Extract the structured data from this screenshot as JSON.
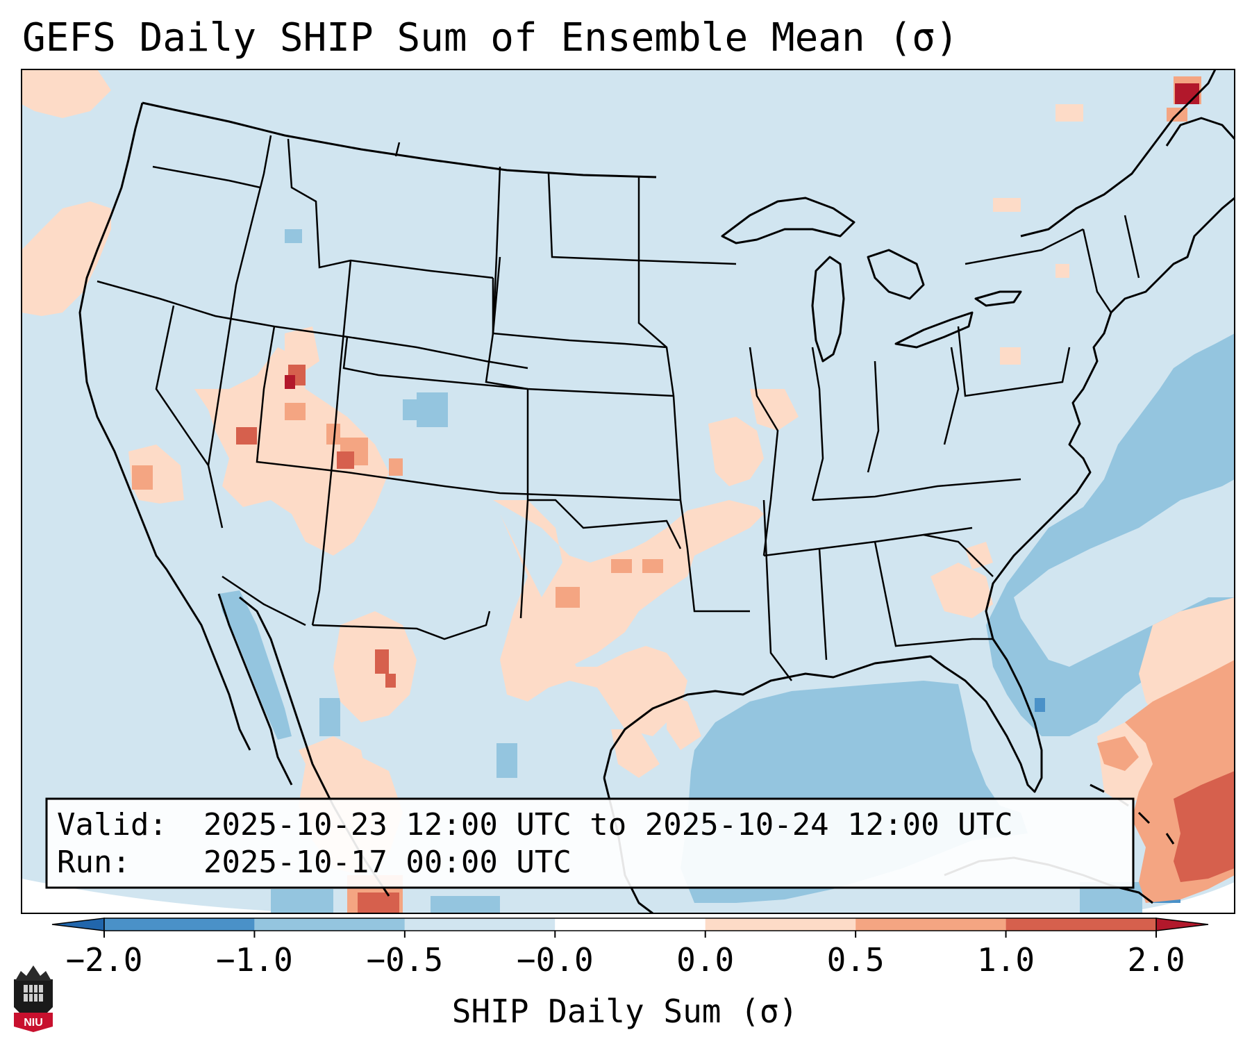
{
  "title": "GEFS Daily SHIP Sum of Ensemble Mean (σ)",
  "info_box": {
    "valid_label": "Valid:",
    "valid_value": "2025-10-23 12:00 UTC to 2025-10-24 12:00 UTC",
    "run_label": "Run:",
    "run_value": "2025-10-17 00:00 UTC"
  },
  "colorbar": {
    "label": "SHIP Daily Sum (σ)",
    "ticks": [
      "−2.0",
      "−1.0",
      "−0.5",
      "−0.0",
      "0.0",
      "0.5",
      "1.0",
      "2.0"
    ],
    "bins": [
      {
        "from": "-2.0",
        "to": "-1.0",
        "color": "#4a91c8"
      },
      {
        "from": "-1.0",
        "to": "-0.5",
        "color": "#94c5df"
      },
      {
        "from": "-0.5",
        "to": "-0.0",
        "color": "#d1e5f0"
      },
      {
        "from": "-0.0",
        "to": "0.0",
        "color": "#ffffff"
      },
      {
        "from": "0.0",
        "to": "0.5",
        "color": "#fddbc7"
      },
      {
        "from": "0.5",
        "to": "1.0",
        "color": "#f4a582"
      },
      {
        "from": "1.0",
        "to": "2.0",
        "color": "#d6604d"
      }
    ],
    "extend_min_color": "#2166ac",
    "extend_max_color": "#b2182b"
  },
  "logo": {
    "text": "NIU",
    "color": "#c8102e"
  },
  "map": {
    "background_color": "#d1e5f0",
    "anomaly_regions": [
      {
        "region": "Pacific Northwest offshore",
        "category": "0.0 to 0.5"
      },
      {
        "region": "Northern California / Nevada",
        "category": "0.0 to 0.5"
      },
      {
        "region": "Utah",
        "category": "1.0 to 2.0"
      },
      {
        "region": "Four Corners / Arizona / New Mexico",
        "category": "0.0 to 0.5"
      },
      {
        "region": "Texas / Oklahoma / Arkansas",
        "category": "0.0 to 0.5"
      },
      {
        "region": "Southeast US / Carolinas",
        "category": "0.0 to 0.5"
      },
      {
        "region": "Gulf of Mexico",
        "category": "-1.0 to -0.5"
      },
      {
        "region": "Western Atlantic",
        "category": "-1.0 to -0.5"
      },
      {
        "region": "Southwestern Atlantic / Caribbean",
        "category": "0.5 to 1.0"
      },
      {
        "region": "Gulf of California",
        "category": "-1.0 to -0.5"
      },
      {
        "region": "Gaspé Peninsula",
        "category": "1.0 to 2.0"
      }
    ]
  }
}
